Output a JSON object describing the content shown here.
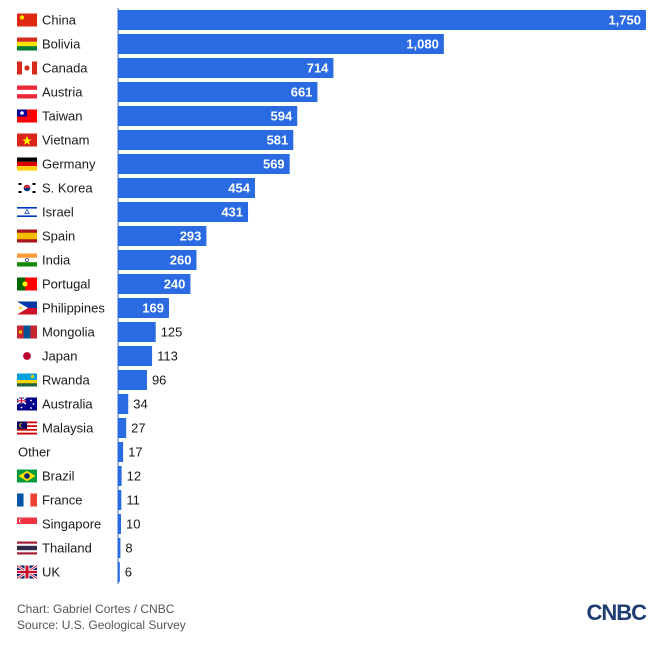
{
  "chart_data": {
    "type": "bar",
    "orientation": "horizontal",
    "categories": [
      "China",
      "Bolivia",
      "Canada",
      "Austria",
      "Taiwan",
      "Vietnam",
      "Germany",
      "S. Korea",
      "Israel",
      "Spain",
      "India",
      "Portugal",
      "Philippines",
      "Mongolia",
      "Japan",
      "Rwanda",
      "Australia",
      "Malaysia",
      "Other",
      "Brazil",
      "France",
      "Singapore",
      "Thailand",
      "UK"
    ],
    "values": [
      1750,
      1080,
      714,
      661,
      594,
      581,
      569,
      454,
      431,
      293,
      260,
      240,
      169,
      125,
      113,
      96,
      34,
      27,
      17,
      12,
      11,
      10,
      8,
      6
    ],
    "value_labels": [
      "1,750",
      "1,080",
      "714",
      "661",
      "594",
      "581",
      "569",
      "454",
      "431",
      "293",
      "260",
      "240",
      "169",
      "125",
      "113",
      "96",
      "34",
      "27",
      "17",
      "12",
      "11",
      "10",
      "8",
      "6"
    ],
    "flags": [
      "china-flag",
      "bolivia-flag",
      "canada-flag",
      "austria-flag",
      "taiwan-flag",
      "vietnam-flag",
      "germany-flag",
      "south-korea-flag",
      "israel-flag",
      "spain-flag",
      "india-flag",
      "portugal-flag",
      "philippines-flag",
      "mongolia-flag",
      "japan-flag",
      "rwanda-flag",
      "australia-flag",
      "malaysia-flag",
      "",
      "brazil-flag",
      "france-flag",
      "singapore-flag",
      "thailand-flag",
      "uk-flag"
    ],
    "xlim": [
      0,
      1750
    ],
    "grid": false,
    "bar_color": "#2a6be3"
  },
  "footer": {
    "credit": "Chart: Gabriel Cortes / CNBC",
    "source": "Source: U.S. Geological Survey"
  },
  "brand": {
    "logo_text": "CNBC"
  }
}
